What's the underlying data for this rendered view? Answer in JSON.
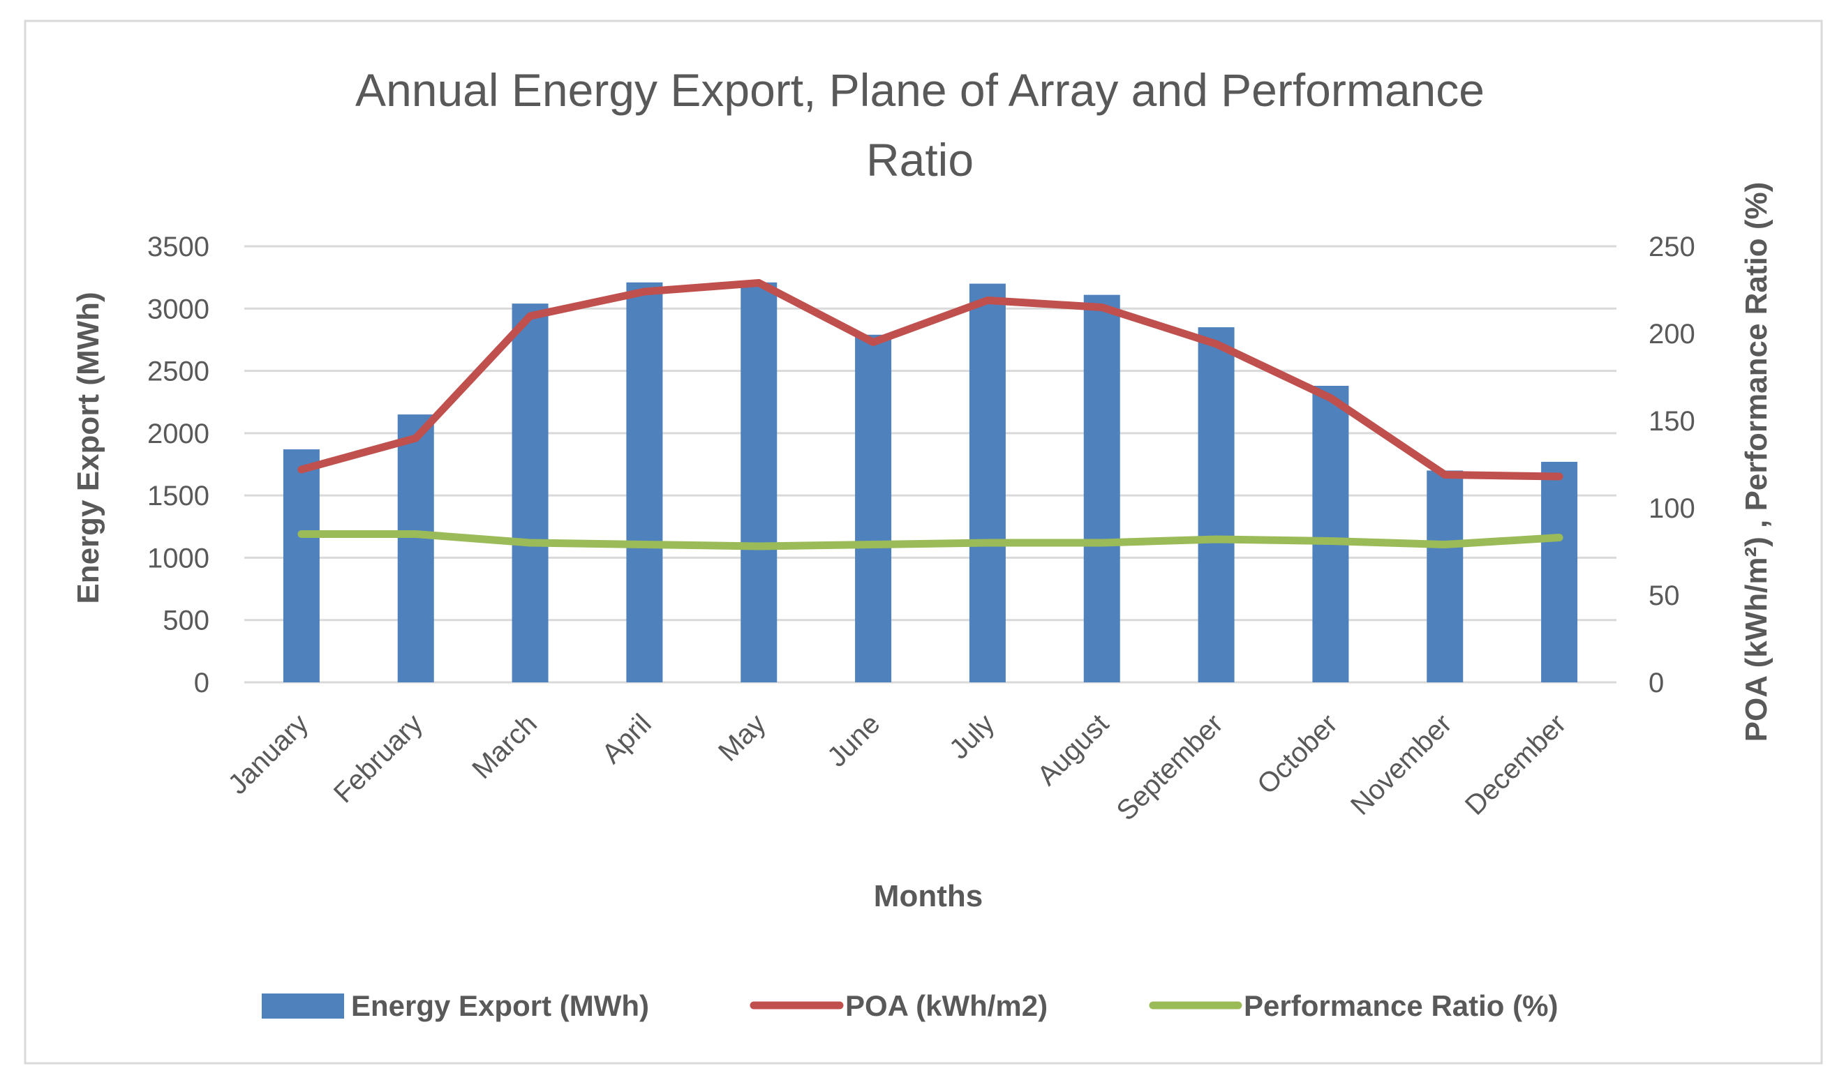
{
  "chart_data": {
    "type": "bar",
    "title_lines": [
      "Annual Energy Export, Plane of Array and Performance",
      "Ratio"
    ],
    "xlabel": "Months",
    "ylabel": "Energy Export (MWh)",
    "ylabel_right": "POA (kWh/m²) , Performance Ratio (%)",
    "ylim": [
      0,
      3500
    ],
    "ylim_right": [
      0,
      250
    ],
    "yticks": [
      "0",
      "500",
      "1000",
      "1500",
      "2000",
      "2500",
      "3000",
      "3500"
    ],
    "yticks_right": [
      "0",
      "50",
      "100",
      "150",
      "200",
      "250"
    ],
    "categories": [
      "January",
      "February",
      "March",
      "April",
      "May",
      "June",
      "July",
      "August",
      "September",
      "October",
      "November",
      "December"
    ],
    "series": [
      {
        "name": "Energy Export (MWh)",
        "type": "bar",
        "axis": "left",
        "color": "#4f81bd",
        "values": [
          1870,
          2150,
          3040,
          3210,
          3210,
          2790,
          3200,
          3110,
          2850,
          2380,
          1700,
          1770
        ]
      },
      {
        "name": "POA (kWh/m2)",
        "type": "line",
        "axis": "right",
        "color": "#c0504d",
        "values": [
          122,
          140,
          210,
          224,
          229,
          195,
          219,
          215,
          194,
          163,
          119,
          118
        ]
      },
      {
        "name": "Performance Ratio (%)",
        "type": "line",
        "axis": "right",
        "color": "#9bbb59",
        "values": [
          85,
          85,
          80,
          79,
          78,
          79,
          80,
          80,
          82,
          81,
          79,
          83
        ]
      }
    ],
    "grid": true,
    "legend": "bottom"
  }
}
